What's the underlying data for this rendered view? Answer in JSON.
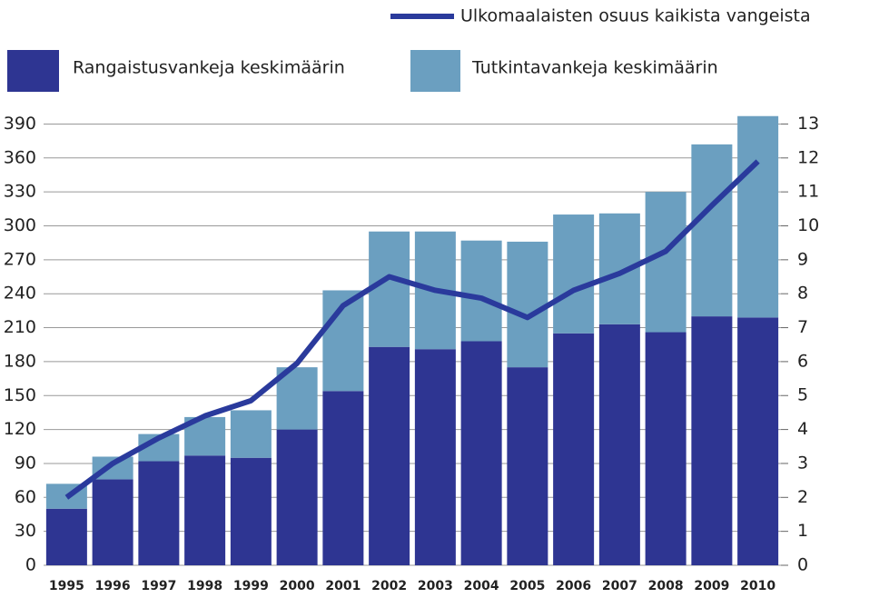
{
  "chart_data": {
    "type": "stacked_bar_line",
    "categories": [
      "1995",
      "1996",
      "1997",
      "1998",
      "1999",
      "2000",
      "2001",
      "2002",
      "2003",
      "2004",
      "2005",
      "2006",
      "2007",
      "2008",
      "2009",
      "2010"
    ],
    "series": [
      {
        "name": "Rangaistusvankeja keskimäärin",
        "color": "#2e3592",
        "values": [
          50,
          76,
          92,
          97,
          95,
          120,
          154,
          193,
          191,
          198,
          175,
          205,
          213,
          206,
          220,
          219
        ]
      },
      {
        "name": "Tutkintavankeja keskimäärin",
        "color": "#6b9fc0",
        "values": [
          22,
          20,
          24,
          34,
          42,
          55,
          89,
          102,
          104,
          89,
          111,
          105,
          98,
          124,
          152,
          178
        ]
      },
      {
        "name": "Ulkomaalaisten osuus kaikista vangeista",
        "color": "#2a3a9c",
        "axis": "y2",
        "values": [
          2.0,
          3.0,
          3.75,
          4.4,
          4.85,
          5.95,
          7.65,
          8.5,
          8.1,
          7.87,
          7.3,
          8.1,
          8.6,
          9.25,
          10.6,
          11.9
        ]
      }
    ],
    "ylim": [
      0,
      400
    ],
    "yticks": [
      0,
      30,
      60,
      90,
      120,
      150,
      180,
      210,
      240,
      270,
      300,
      330,
      360,
      390
    ],
    "y2lim": [
      0,
      13.333
    ],
    "y2ticks": [
      0,
      1,
      2,
      3,
      4,
      5,
      6,
      7,
      8,
      9,
      10,
      11,
      12,
      13
    ],
    "grid": true
  }
}
